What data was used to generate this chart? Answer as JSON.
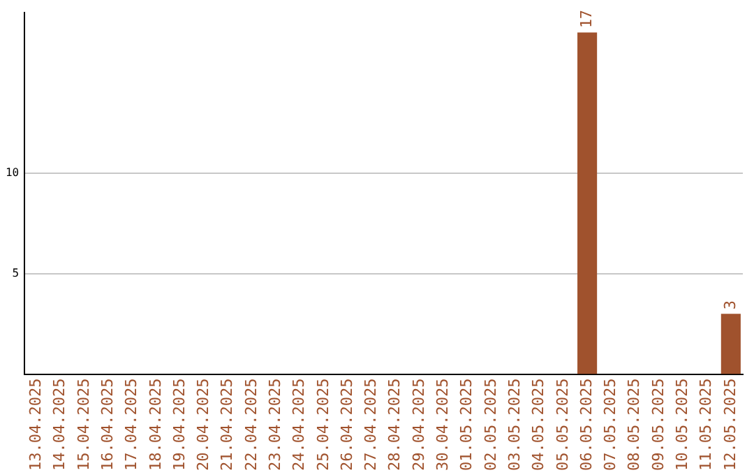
{
  "chart_data": {
    "type": "bar",
    "categories": [
      "13.04.2025",
      "14.04.2025",
      "15.04.2025",
      "16.04.2025",
      "17.04.2025",
      "18.04.2025",
      "19.04.2025",
      "20.04.2025",
      "21.04.2025",
      "22.04.2025",
      "23.04.2025",
      "24.04.2025",
      "25.04.2025",
      "26.04.2025",
      "27.04.2025",
      "28.04.2025",
      "29.04.2025",
      "30.04.2025",
      "01.05.2025",
      "02.05.2025",
      "03.05.2025",
      "04.05.2025",
      "05.05.2025",
      "06.05.2025",
      "07.05.2025",
      "08.05.2025",
      "09.05.2025",
      "10.05.2025",
      "11.05.2025",
      "12.05.2025"
    ],
    "values": [
      0,
      0,
      0,
      0,
      0,
      0,
      0,
      0,
      0,
      0,
      0,
      0,
      0,
      0,
      0,
      0,
      0,
      0,
      0,
      0,
      0,
      0,
      0,
      17,
      0,
      0,
      0,
      0,
      0,
      3
    ],
    "value_labels": [
      null,
      null,
      null,
      null,
      null,
      null,
      null,
      null,
      null,
      null,
      null,
      null,
      null,
      null,
      null,
      null,
      null,
      null,
      null,
      null,
      null,
      null,
      null,
      "17",
      null,
      null,
      null,
      null,
      null,
      "3"
    ],
    "color": "#a0522d",
    "ylim": [
      0,
      18
    ],
    "yticks": [
      5,
      10
    ],
    "grid": "y"
  }
}
